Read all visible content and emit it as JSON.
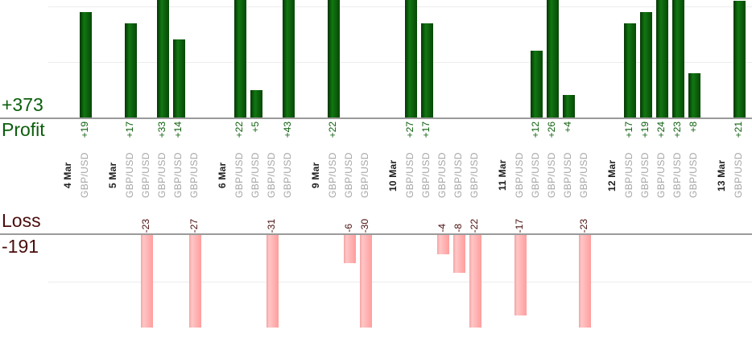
{
  "chart_data": {
    "type": "bar",
    "description": "Daily trading results per trade: profits above upper axis, losses below lower axis",
    "profit": {
      "label": "Profit",
      "total": "+373",
      "color": "#0b5e0b"
    },
    "loss": {
      "label": "Loss",
      "total": "-191",
      "color": "#4a0d0d"
    },
    "colors": {
      "profit_bar": "#0e6f0e",
      "loss_bar": "#ff9d9d",
      "instrument_text": "#a6a6a6",
      "date_text": "#1f1f1f",
      "axis_line": "#9a9a9a",
      "gridline": "#ececec"
    },
    "gridlines": {
      "profit_units": [
        10,
        20
      ],
      "loss_units": [
        10
      ],
      "interval": 10
    },
    "axis_note": "bars taller than visible area are clipped at chart edges",
    "groups": [
      {
        "date": "4 Mar",
        "trades": [
          {
            "instrument": "GBP/USD",
            "value": 19,
            "label": "+19"
          }
        ]
      },
      {
        "date": "5 Mar",
        "trades": [
          {
            "instrument": "GBP/USD",
            "value": 17,
            "label": "+17"
          },
          {
            "instrument": "GBP/USD",
            "value": -23,
            "label": "-23"
          },
          {
            "instrument": "GBP/USD",
            "value": 33,
            "label": "+33"
          },
          {
            "instrument": "GBP/USD",
            "value": 14,
            "label": "+14"
          },
          {
            "instrument": "GBP/USD",
            "value": -27,
            "label": "-27"
          }
        ]
      },
      {
        "date": "6 Mar",
        "trades": [
          {
            "instrument": "GBP/USD",
            "value": 22,
            "label": "+22"
          },
          {
            "instrument": "GBP/USD",
            "value": 5,
            "label": "+5"
          },
          {
            "instrument": "GBP/USD",
            "value": -31,
            "label": "-31"
          },
          {
            "instrument": "GBP/USD",
            "value": 43,
            "label": "+43"
          }
        ]
      },
      {
        "date": "9 Mar",
        "trades": [
          {
            "instrument": "GBP/USD",
            "value": 22,
            "label": "+22"
          },
          {
            "instrument": "GBP/USD",
            "value": -6,
            "label": "-6"
          },
          {
            "instrument": "GBP/USD",
            "value": -30,
            "label": "-30"
          }
        ]
      },
      {
        "date": "10 Mar",
        "trades": [
          {
            "instrument": "GBP/USD",
            "value": 27,
            "label": "+27"
          },
          {
            "instrument": "GBP/USD",
            "value": 17,
            "label": "+17"
          },
          {
            "instrument": "GBP/USD",
            "value": -4,
            "label": "-4"
          },
          {
            "instrument": "GBP/USD",
            "value": -8,
            "label": "-8"
          },
          {
            "instrument": "GBP/USD",
            "value": -22,
            "label": "-22"
          }
        ]
      },
      {
        "date": "11 Mar",
        "trades": [
          {
            "instrument": "GBP/USD",
            "value": -17,
            "label": "-17"
          },
          {
            "instrument": "GBP/USD",
            "value": 12,
            "label": "+12"
          },
          {
            "instrument": "GBP/USD",
            "value": 26,
            "label": "+26"
          },
          {
            "instrument": "GBP/USD",
            "value": 4,
            "label": "+4"
          },
          {
            "instrument": "GBP/USD",
            "value": -23,
            "label": "-23"
          }
        ]
      },
      {
        "date": "12 Mar",
        "trades": [
          {
            "instrument": "GBP/USD",
            "value": 17,
            "label": "+17"
          },
          {
            "instrument": "GBP/USD",
            "value": 19,
            "label": "+19"
          },
          {
            "instrument": "GBP/USD",
            "value": 24,
            "label": "+24"
          },
          {
            "instrument": "GBP/USD",
            "value": 23,
            "label": "+23"
          },
          {
            "instrument": "GBP/USD",
            "value": 8,
            "label": "+8"
          }
        ]
      },
      {
        "date": "13 Mar",
        "trades": [
          {
            "instrument": "GBP/USD",
            "value": 21,
            "label": "+21"
          }
        ]
      }
    ]
  }
}
